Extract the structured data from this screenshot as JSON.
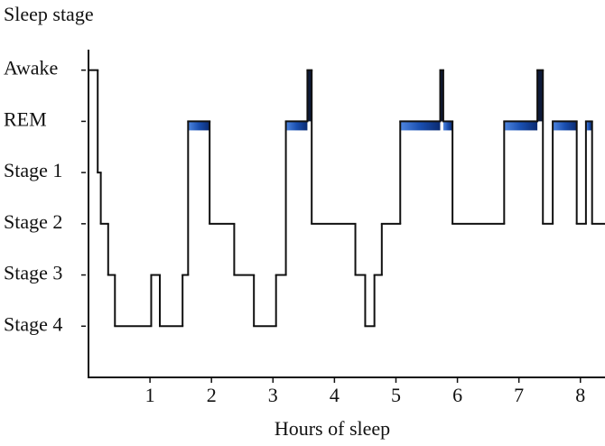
{
  "chart_data": {
    "type": "step",
    "title": "Sleep stage",
    "x_label": "Hours of sleep",
    "x": [
      0,
      0.15,
      0.2,
      0.32,
      0.43,
      1.02,
      1.16,
      1.53,
      1.62,
      1.97,
      2.37,
      2.69,
      3.05,
      3.21,
      3.56,
      3.63,
      4.34,
      4.5,
      4.65,
      4.77,
      5.07,
      5.72,
      5.77,
      5.92,
      6.76,
      7.3,
      7.39,
      7.55,
      7.94,
      8.09,
      8.19
    ],
    "values": [
      6,
      4,
      3,
      2,
      1,
      2,
      1,
      2,
      5,
      3,
      2,
      1,
      2,
      5,
      6,
      3,
      2,
      1,
      2,
      3,
      5,
      6,
      5,
      3,
      5,
      6,
      3,
      5,
      3,
      5,
      3
    ],
    "color": "#111111",
    "rem_color": "#1a4fb0",
    "awake_color": "#0d1a3a",
    "xlim": [
      0,
      8.4
    ],
    "xticks": [
      1,
      2,
      3,
      4,
      5,
      6,
      7,
      8
    ],
    "ylim": [
      0,
      6.4
    ],
    "yticks": [
      {
        "value": 6,
        "label": "Awake"
      },
      {
        "value": 5,
        "label": "REM"
      },
      {
        "value": 4,
        "label": "Stage 1"
      },
      {
        "value": 3,
        "label": "Stage 2"
      },
      {
        "value": 2,
        "label": "Stage 3"
      },
      {
        "value": 1,
        "label": "Stage 4"
      }
    ],
    "rem_level": 5,
    "awake_level": 6
  }
}
